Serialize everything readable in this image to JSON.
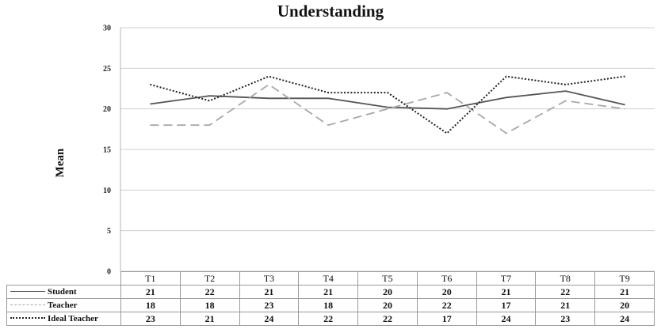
{
  "chart_data": {
    "type": "line",
    "title": "Understanding",
    "ylabel": "Mean",
    "xlabel": "",
    "ylim": [
      0,
      30
    ],
    "yticks": [
      0,
      5,
      10,
      15,
      20,
      25,
      30
    ],
    "grid": true,
    "categories": [
      "T1",
      "T2",
      "T3",
      "T4",
      "T5",
      "T6",
      "T7",
      "T8",
      "T9"
    ],
    "series": [
      {
        "name": "Student",
        "style": "solid",
        "color": "#555555",
        "values": [
          20.6,
          21.6,
          21.3,
          21.3,
          20.2,
          20.0,
          21.4,
          22.2,
          20.5
        ],
        "table_values": [
          "21",
          "22",
          "21",
          "21",
          "20",
          "20",
          "21",
          "22",
          "21"
        ]
      },
      {
        "name": "Teacher",
        "style": "dashed",
        "color": "#a8a8a8",
        "values": [
          18,
          18,
          23,
          18,
          20,
          22,
          17,
          21,
          20
        ],
        "table_values": [
          "18",
          "18",
          "23",
          "18",
          "20",
          "22",
          "17",
          "21",
          "20"
        ]
      },
      {
        "name": "Ideal Teacher",
        "style": "dotted",
        "color": "#222222",
        "values": [
          23,
          21,
          24,
          22,
          22,
          17,
          24,
          23,
          24
        ],
        "table_values": [
          "23",
          "21",
          "24",
          "22",
          "22",
          "17",
          "24",
          "23",
          "24"
        ]
      }
    ],
    "legend": "table-left"
  }
}
